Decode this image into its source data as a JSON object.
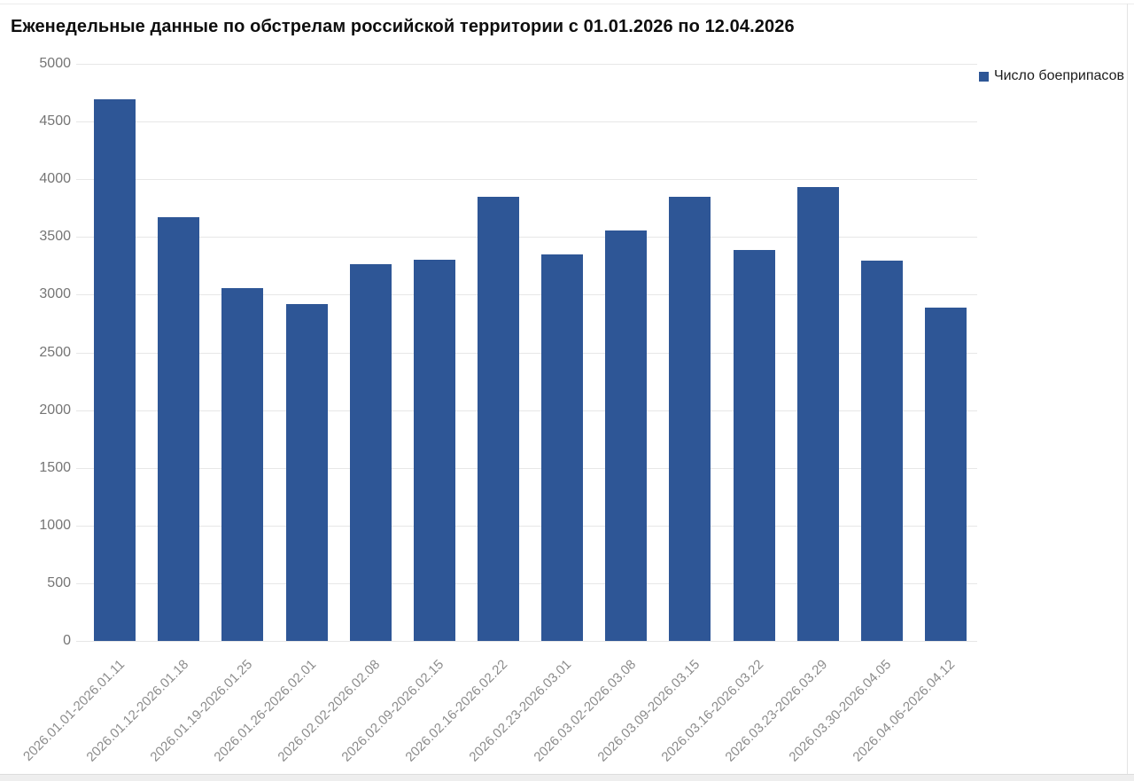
{
  "window": {
    "bottom_strip": true
  },
  "chart_data": {
    "type": "bar",
    "title": "Еженедельные данные по обстрелам российской территории с 01.01.2026 по 12.04.2026",
    "legend_label": "Число боеприпасов",
    "legend_position": "top-right",
    "grid": true,
    "bar_color": "#2e5696",
    "ylim": [
      0,
      5000
    ],
    "ytick_step": 500,
    "xlabel": "",
    "ylabel": "",
    "categories": [
      "2026.01.01-2026.01.11",
      "2026.01.12-2026.01.18",
      "2026.01.19-2026.01.25",
      "2026.01.26-2026.02.01",
      "2026.02.02-2026.02.08",
      "2026.02.09-2026.02.15",
      "2026.02.16-2026.02.22",
      "2026.02.23-2026.03.01",
      "2026.03.02-2026.03.08",
      "2026.03.09-2026.03.15",
      "2026.03.16-2026.03.22",
      "2026.03.23-2026.03.29",
      "2026.03.30-2026.04.05",
      "2026.04.06-2026.04.12"
    ],
    "series": [
      {
        "name": "Число боеприпасов",
        "values": [
          4690,
          3675,
          3055,
          2915,
          3265,
          3305,
          3845,
          3350,
          3555,
          3845,
          3390,
          3930,
          3295,
          2885
        ]
      }
    ]
  }
}
